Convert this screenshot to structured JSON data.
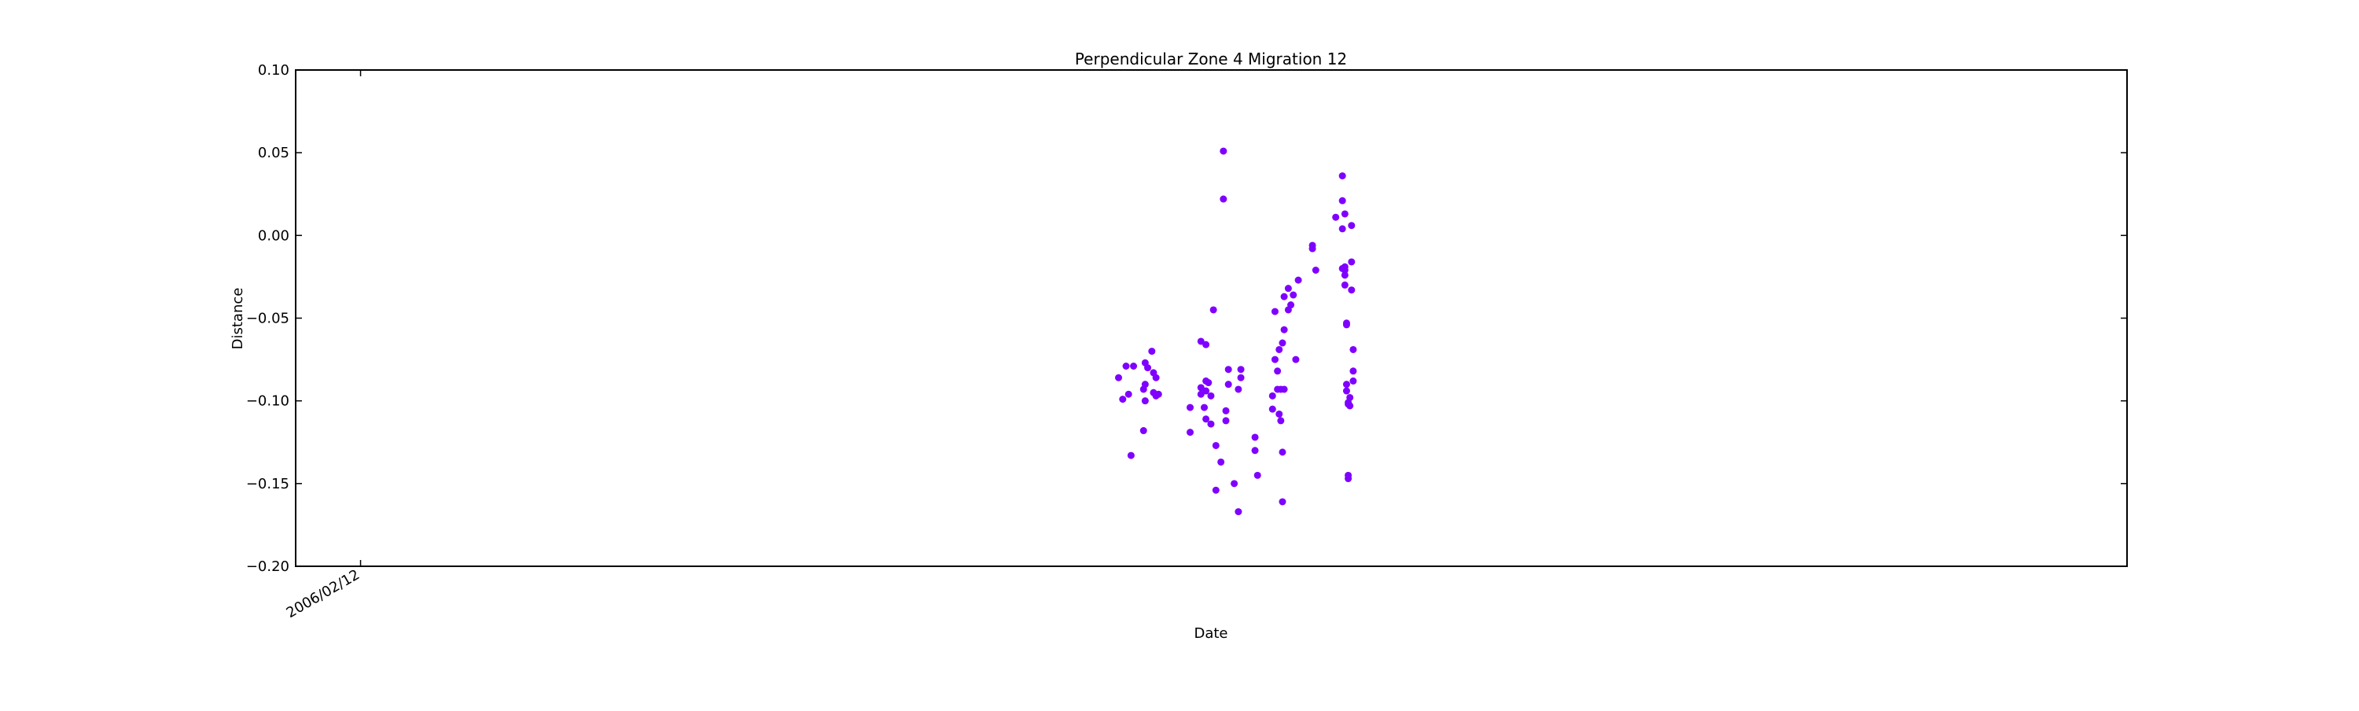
{
  "chart_data": {
    "type": "scatter",
    "title": "Perpendicular Zone 4 Migration 12",
    "xlabel": "Date",
    "ylabel": "Distance",
    "ylim": [
      -0.2,
      0.1
    ],
    "yticks": [
      0.1,
      0.05,
      0.0,
      -0.05,
      -0.1,
      -0.15,
      -0.2
    ],
    "ytick_labels": [
      "0.10",
      "0.05",
      "0.00",
      "−0.05",
      "−0.10",
      "−0.15",
      "−0.20"
    ],
    "xlim": [
      "2005-11-26",
      "2011-12-06"
    ],
    "xticks": [
      "2006-02-12"
    ],
    "xtick_labels": [
      "2006/02/12"
    ],
    "grid": false,
    "marker_color": "#7f00ff",
    "series": [
      {
        "points": [
          {
            "x": "2008-08-11",
            "y": -0.086
          },
          {
            "x": "2008-08-16",
            "y": -0.099
          },
          {
            "x": "2008-08-20",
            "y": -0.079
          },
          {
            "x": "2008-08-23",
            "y": -0.096
          },
          {
            "x": "2008-08-26",
            "y": -0.133
          },
          {
            "x": "2008-08-29",
            "y": -0.079
          },
          {
            "x": "2008-09-10",
            "y": -0.118
          },
          {
            "x": "2008-09-10",
            "y": -0.093
          },
          {
            "x": "2008-09-12",
            "y": -0.1
          },
          {
            "x": "2008-09-12",
            "y": -0.09
          },
          {
            "x": "2008-09-12",
            "y": -0.077
          },
          {
            "x": "2008-09-15",
            "y": -0.08
          },
          {
            "x": "2008-09-20",
            "y": -0.07
          },
          {
            "x": "2008-09-22",
            "y": -0.095
          },
          {
            "x": "2008-09-22",
            "y": -0.083
          },
          {
            "x": "2008-09-25",
            "y": -0.086
          },
          {
            "x": "2008-09-25",
            "y": -0.097
          },
          {
            "x": "2008-09-28",
            "y": -0.096
          },
          {
            "x": "2008-11-05",
            "y": -0.119
          },
          {
            "x": "2008-11-05",
            "y": -0.104
          },
          {
            "x": "2008-11-18",
            "y": -0.064
          },
          {
            "x": "2008-11-18",
            "y": -0.092
          },
          {
            "x": "2008-11-18",
            "y": -0.096
          },
          {
            "x": "2008-11-22",
            "y": -0.104
          },
          {
            "x": "2008-11-24",
            "y": -0.111
          },
          {
            "x": "2008-11-24",
            "y": -0.066
          },
          {
            "x": "2008-11-24",
            "y": -0.094
          },
          {
            "x": "2008-11-24",
            "y": -0.088
          },
          {
            "x": "2008-11-27",
            "y": -0.089
          },
          {
            "x": "2008-11-30",
            "y": -0.114
          },
          {
            "x": "2008-11-30",
            "y": -0.097
          },
          {
            "x": "2008-12-03",
            "y": -0.045
          },
          {
            "x": "2008-12-06",
            "y": -0.127
          },
          {
            "x": "2008-12-06",
            "y": -0.154
          },
          {
            "x": "2008-12-12",
            "y": -0.137
          },
          {
            "x": "2008-12-15",
            "y": 0.051
          },
          {
            "x": "2008-12-15",
            "y": 0.022
          },
          {
            "x": "2008-12-18",
            "y": -0.106
          },
          {
            "x": "2008-12-18",
            "y": -0.112
          },
          {
            "x": "2008-12-21",
            "y": -0.081
          },
          {
            "x": "2008-12-21",
            "y": -0.09
          },
          {
            "x": "2008-12-28",
            "y": -0.15
          },
          {
            "x": "2009-01-02",
            "y": -0.093
          },
          {
            "x": "2009-01-02",
            "y": -0.167
          },
          {
            "x": "2009-01-05",
            "y": -0.086
          },
          {
            "x": "2009-01-05",
            "y": -0.081
          },
          {
            "x": "2009-01-22",
            "y": -0.13
          },
          {
            "x": "2009-01-22",
            "y": -0.122
          },
          {
            "x": "2009-01-25",
            "y": -0.145
          },
          {
            "x": "2009-02-12",
            "y": -0.097
          },
          {
            "x": "2009-02-12",
            "y": -0.105
          },
          {
            "x": "2009-02-15",
            "y": -0.046
          },
          {
            "x": "2009-02-15",
            "y": -0.075
          },
          {
            "x": "2009-02-18",
            "y": -0.082
          },
          {
            "x": "2009-02-18",
            "y": -0.093
          },
          {
            "x": "2009-02-20",
            "y": -0.069
          },
          {
            "x": "2009-02-20",
            "y": -0.108
          },
          {
            "x": "2009-02-22",
            "y": -0.112
          },
          {
            "x": "2009-02-22",
            "y": -0.093
          },
          {
            "x": "2009-02-24",
            "y": -0.065
          },
          {
            "x": "2009-02-24",
            "y": -0.131
          },
          {
            "x": "2009-02-24",
            "y": -0.161
          },
          {
            "x": "2009-02-26",
            "y": -0.037
          },
          {
            "x": "2009-02-26",
            "y": -0.057
          },
          {
            "x": "2009-02-26",
            "y": -0.093
          },
          {
            "x": "2009-03-03",
            "y": -0.045
          },
          {
            "x": "2009-03-03",
            "y": -0.032
          },
          {
            "x": "2009-03-06",
            "y": -0.042
          },
          {
            "x": "2009-03-09",
            "y": -0.036
          },
          {
            "x": "2009-03-12",
            "y": -0.075
          },
          {
            "x": "2009-03-15",
            "y": -0.027
          },
          {
            "x": "2009-04-01",
            "y": -0.008
          },
          {
            "x": "2009-04-01",
            "y": -0.006
          },
          {
            "x": "2009-04-05",
            "y": -0.021
          },
          {
            "x": "2009-04-29",
            "y": 0.011
          },
          {
            "x": "2009-05-07",
            "y": 0.036
          },
          {
            "x": "2009-05-07",
            "y": 0.021
          },
          {
            "x": "2009-05-07",
            "y": 0.004
          },
          {
            "x": "2009-05-07",
            "y": -0.02
          },
          {
            "x": "2009-05-10",
            "y": 0.013
          },
          {
            "x": "2009-05-10",
            "y": -0.021
          },
          {
            "x": "2009-05-10",
            "y": -0.024
          },
          {
            "x": "2009-05-10",
            "y": -0.03
          },
          {
            "x": "2009-05-10",
            "y": -0.019
          },
          {
            "x": "2009-05-12",
            "y": -0.053
          },
          {
            "x": "2009-05-12",
            "y": -0.054
          },
          {
            "x": "2009-05-12",
            "y": -0.09
          },
          {
            "x": "2009-05-12",
            "y": -0.094
          },
          {
            "x": "2009-05-14",
            "y": -0.101
          },
          {
            "x": "2009-05-14",
            "y": -0.102
          },
          {
            "x": "2009-05-14",
            "y": -0.147
          },
          {
            "x": "2009-05-14",
            "y": -0.145
          },
          {
            "x": "2009-05-16",
            "y": -0.103
          },
          {
            "x": "2009-05-16",
            "y": -0.098
          },
          {
            "x": "2009-05-18",
            "y": 0.006
          },
          {
            "x": "2009-05-18",
            "y": -0.016
          },
          {
            "x": "2009-05-18",
            "y": -0.033
          },
          {
            "x": "2009-05-20",
            "y": -0.069
          },
          {
            "x": "2009-05-20",
            "y": -0.082
          },
          {
            "x": "2009-05-20",
            "y": -0.088
          }
        ]
      }
    ]
  }
}
